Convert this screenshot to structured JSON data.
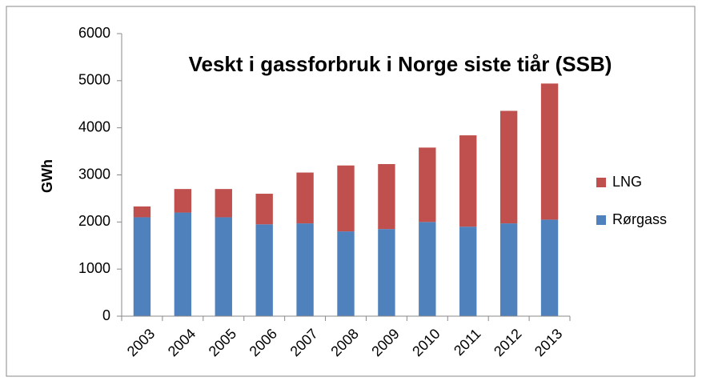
{
  "chart_data": {
    "type": "stacked_bar",
    "title": "Veskt i gassforbruk i Norge siste tiår (SSB)",
    "y_label": "GWh",
    "categories": [
      "2003",
      "2004",
      "2005",
      "2006",
      "2007",
      "2008",
      "2009",
      "2010",
      "2011",
      "2012",
      "2013"
    ],
    "series": [
      {
        "name": "Rørgass",
        "color": "#4f81bd",
        "values": [
          2100,
          2200,
          2100,
          1950,
          1970,
          1800,
          1850,
          2000,
          1900,
          1970,
          2050
        ]
      },
      {
        "name": "LNG",
        "color": "#c0504d",
        "values": [
          230,
          500,
          600,
          650,
          1080,
          1400,
          1380,
          1580,
          1940,
          2390,
          2890
        ]
      }
    ],
    "ylim": [
      0,
      6000
    ],
    "yticks": [
      0,
      1000,
      2000,
      3000,
      4000,
      5000,
      6000
    ],
    "grid": false,
    "legend": "right"
  }
}
